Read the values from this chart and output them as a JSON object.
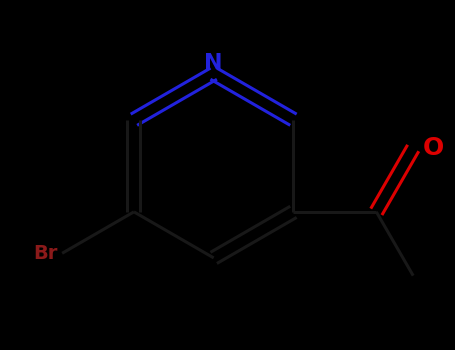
{
  "background_color": "#000000",
  "bond_color_ring_top": "#1a1aff",
  "bond_color_ring_bottom": "#111111",
  "bond_color_substituent": "#111111",
  "nitrogen_color": "#2222dd",
  "oxygen_color": "#dd0000",
  "bromine_color": "#8b1a1a",
  "figsize": [
    4.55,
    3.5
  ],
  "dpi": 100,
  "N_label": "N",
  "O_label": "O",
  "Br_label": "Br"
}
